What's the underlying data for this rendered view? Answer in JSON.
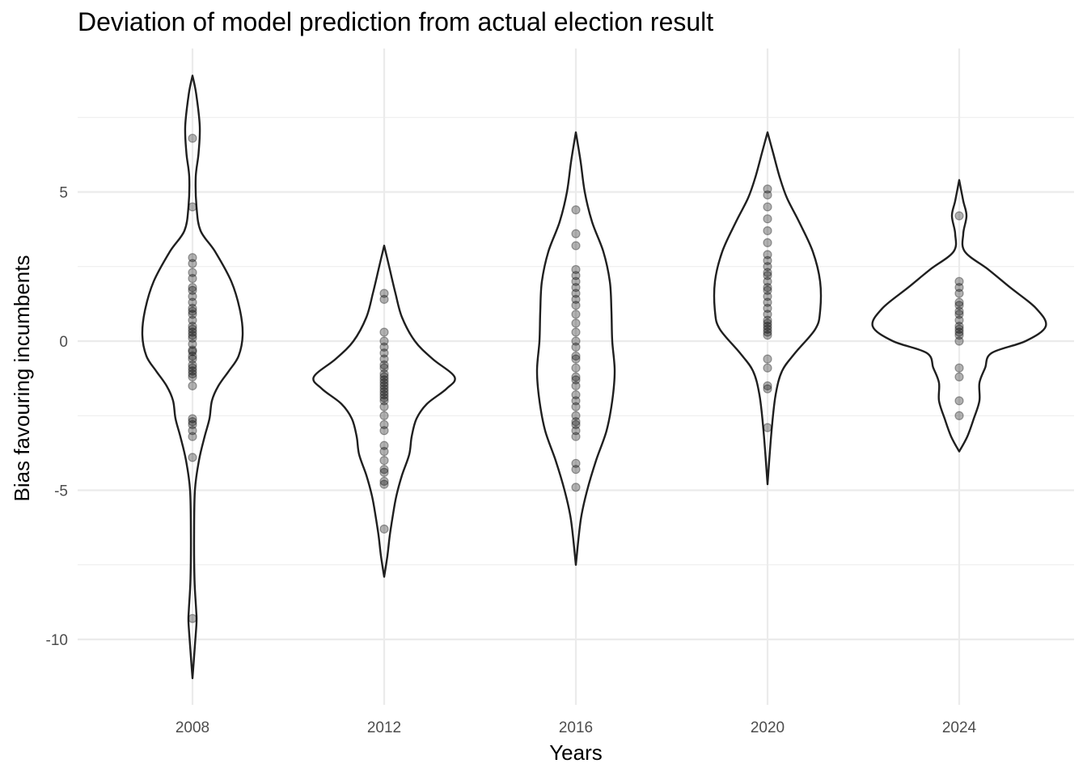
{
  "chart_data": {
    "type": "violin",
    "title": "Deviation of model prediction from actual election result",
    "xlabel": "Years",
    "ylabel": "Bias favouring incumbents",
    "categories": [
      "2008",
      "2012",
      "2016",
      "2020",
      "2024"
    ],
    "y_ticks": [
      5,
      0,
      -5,
      -10
    ],
    "y_tick_labels": [
      "5",
      "0",
      "-5",
      "-10"
    ],
    "ylim": [
      -12.1,
      9.9
    ],
    "grid": true,
    "point_color": "#000000",
    "line_color": "#1f1f1f",
    "groups": [
      {
        "category": "2008",
        "points": [
          6.8,
          4.5,
          2.8,
          2.6,
          2.3,
          2.1,
          1.8,
          1.7,
          1.5,
          1.3,
          1.1,
          1.0,
          0.9,
          0.7,
          0.5,
          0.4,
          0.3,
          0.2,
          0.1,
          -0.1,
          -0.3,
          -0.35,
          -0.5,
          -0.6,
          -0.8,
          -0.9,
          -1.0,
          -1.1,
          -1.2,
          -1.5,
          -2.6,
          -2.7,
          -2.8,
          -3.0,
          -3.2,
          -3.9,
          -9.3
        ],
        "density_profile": [
          [
            8.9,
            0.0
          ],
          [
            8.3,
            4.5
          ],
          [
            7.2,
            9.0
          ],
          [
            6.3,
            7.5
          ],
          [
            5.5,
            4.0
          ],
          [
            4.5,
            5.0
          ],
          [
            3.7,
            10.0
          ],
          [
            3.0,
            28.0
          ],
          [
            2.0,
            48.0
          ],
          [
            1.0,
            59.0
          ],
          [
            0.2,
            62.0
          ],
          [
            -0.5,
            57.0
          ],
          [
            -1.0,
            45.0
          ],
          [
            -1.5,
            32.0
          ],
          [
            -2.0,
            24.0
          ],
          [
            -2.6,
            21.0
          ],
          [
            -3.2,
            15.0
          ],
          [
            -4.0,
            8.0
          ],
          [
            -5.0,
            3.0
          ],
          [
            -6.5,
            2.0
          ],
          [
            -8.0,
            2.5
          ],
          [
            -9.0,
            4.5
          ],
          [
            -9.4,
            5.0
          ],
          [
            -10.2,
            3.0
          ],
          [
            -11.3,
            0.0
          ]
        ]
      },
      {
        "category": "2012",
        "points": [
          1.6,
          1.4,
          0.3,
          0.0,
          -0.2,
          -0.4,
          -0.6,
          -0.8,
          -0.9,
          -1.1,
          -1.2,
          -1.3,
          -1.4,
          -1.5,
          -1.6,
          -1.7,
          -1.8,
          -1.9,
          -2.0,
          -2.2,
          -2.5,
          -2.8,
          -3.0,
          -3.5,
          -3.7,
          -4.0,
          -4.3,
          -4.4,
          -4.7,
          -4.8,
          -6.3
        ],
        "density_profile": [
          [
            3.2,
            0.0
          ],
          [
            2.4,
            7.0
          ],
          [
            1.6,
            14.0
          ],
          [
            0.8,
            22.0
          ],
          [
            0.0,
            38.0
          ],
          [
            -0.6,
            60.0
          ],
          [
            -1.2,
            87.0
          ],
          [
            -1.6,
            77.0
          ],
          [
            -2.1,
            53.0
          ],
          [
            -2.6,
            40.0
          ],
          [
            -3.2,
            34.0
          ],
          [
            -3.8,
            31.0
          ],
          [
            -4.5,
            22.0
          ],
          [
            -5.2,
            15.0
          ],
          [
            -5.8,
            11.0
          ],
          [
            -6.5,
            7.0
          ],
          [
            -7.2,
            4.0
          ],
          [
            -7.9,
            0.0
          ]
        ]
      },
      {
        "category": "2016",
        "points": [
          4.4,
          3.6,
          3.2,
          2.4,
          2.2,
          2.0,
          1.8,
          1.6,
          1.4,
          1.2,
          0.9,
          0.6,
          0.3,
          0.0,
          -0.2,
          -0.5,
          -0.6,
          -0.9,
          -1.2,
          -1.3,
          -1.5,
          -1.8,
          -2.0,
          -2.2,
          -2.5,
          -2.7,
          -2.8,
          -3.0,
          -3.2,
          -4.1,
          -4.3,
          -4.9
        ],
        "density_profile": [
          [
            7.0,
            0.0
          ],
          [
            6.0,
            6.0
          ],
          [
            5.0,
            11.0
          ],
          [
            4.0,
            20.0
          ],
          [
            3.0,
            34.0
          ],
          [
            2.0,
            42.0
          ],
          [
            1.0,
            44.0
          ],
          [
            0.0,
            45.0
          ],
          [
            -1.0,
            48.0
          ],
          [
            -2.0,
            45.0
          ],
          [
            -3.0,
            38.0
          ],
          [
            -4.0,
            25.0
          ],
          [
            -5.0,
            14.0
          ],
          [
            -6.0,
            6.0
          ],
          [
            -7.5,
            0.0
          ]
        ]
      },
      {
        "category": "2020",
        "points": [
          5.1,
          4.9,
          4.5,
          4.1,
          3.7,
          3.3,
          2.9,
          2.7,
          2.5,
          2.3,
          2.2,
          2.0,
          1.8,
          1.7,
          1.5,
          1.3,
          1.1,
          0.9,
          0.7,
          0.6,
          0.5,
          0.4,
          0.3,
          0.2,
          -0.6,
          -0.9,
          -1.5,
          -1.6,
          -2.9
        ],
        "density_profile": [
          [
            7.0,
            0.0
          ],
          [
            6.3,
            7.0
          ],
          [
            5.5,
            15.0
          ],
          [
            4.8,
            24.0
          ],
          [
            4.0,
            39.0
          ],
          [
            3.0,
            56.0
          ],
          [
            2.0,
            65.0
          ],
          [
            1.0,
            65.0
          ],
          [
            0.4,
            59.0
          ],
          [
            -0.4,
            34.0
          ],
          [
            -1.0,
            18.0
          ],
          [
            -1.8,
            10.0
          ],
          [
            -3.0,
            5.0
          ],
          [
            -4.8,
            0.0
          ]
        ]
      },
      {
        "category": "2024",
        "points": [
          4.2,
          2.0,
          1.8,
          1.6,
          1.3,
          1.2,
          1.0,
          0.9,
          0.7,
          0.5,
          0.4,
          0.3,
          0.2,
          0.0,
          -0.9,
          -1.2,
          -2.0,
          -2.5
        ],
        "density_profile": [
          [
            5.4,
            0.0
          ],
          [
            4.7,
            5.0
          ],
          [
            4.2,
            9.0
          ],
          [
            3.6,
            5.0
          ],
          [
            3.0,
            7.0
          ],
          [
            2.4,
            36.0
          ],
          [
            1.8,
            63.0
          ],
          [
            1.1,
            95.0
          ],
          [
            0.5,
            107.0
          ],
          [
            0.0,
            82.0
          ],
          [
            -0.4,
            40.0
          ],
          [
            -0.9,
            32.0
          ],
          [
            -1.4,
            25.0
          ],
          [
            -2.0,
            25.0
          ],
          [
            -2.6,
            18.0
          ],
          [
            -3.2,
            10.0
          ],
          [
            -3.7,
            0.0
          ]
        ]
      }
    ]
  }
}
